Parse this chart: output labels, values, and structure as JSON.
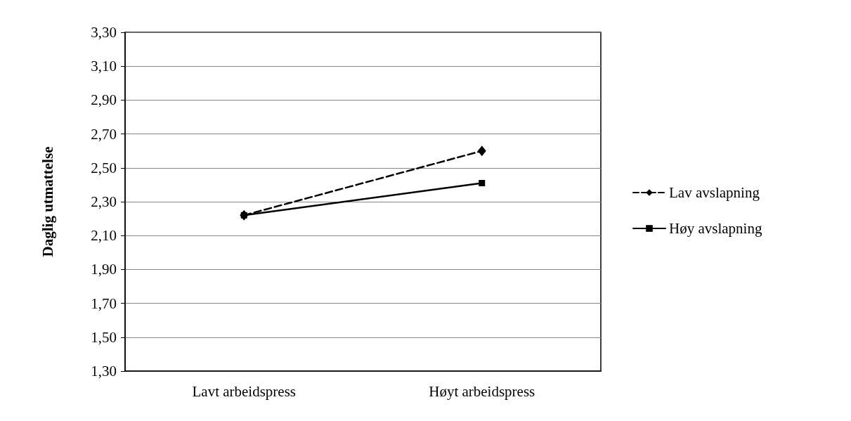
{
  "chart_data": {
    "type": "line",
    "ylabel": "Daglig utmattelse",
    "categories": [
      "Lavt arbeidspress",
      "Høyt arbeidspress"
    ],
    "series": [
      {
        "name": "Lav avslapning",
        "color": "#000000",
        "values": [
          2.22,
          2.6
        ],
        "marker": "diamond",
        "line_style": "dashed"
      },
      {
        "name": "Høy avslapning",
        "color": "#000000",
        "values": [
          2.22,
          2.41
        ],
        "marker": "square",
        "line_style": "solid"
      }
    ],
    "ylim": [
      1.3,
      3.3
    ],
    "yticks": [
      {
        "value": 1.3,
        "label": "1,30"
      },
      {
        "value": 1.5,
        "label": "1,50"
      },
      {
        "value": 1.7,
        "label": "1,70"
      },
      {
        "value": 1.9,
        "label": "1,90"
      },
      {
        "value": 2.1,
        "label": "2,10"
      },
      {
        "value": 2.3,
        "label": "2,30"
      },
      {
        "value": 2.5,
        "label": "2,50"
      },
      {
        "value": 2.7,
        "label": "2,70"
      },
      {
        "value": 2.9,
        "label": "2,90"
      },
      {
        "value": 3.1,
        "label": "3,10"
      },
      {
        "value": 3.3,
        "label": "3,30"
      }
    ],
    "grid": "y",
    "legend": "right"
  }
}
